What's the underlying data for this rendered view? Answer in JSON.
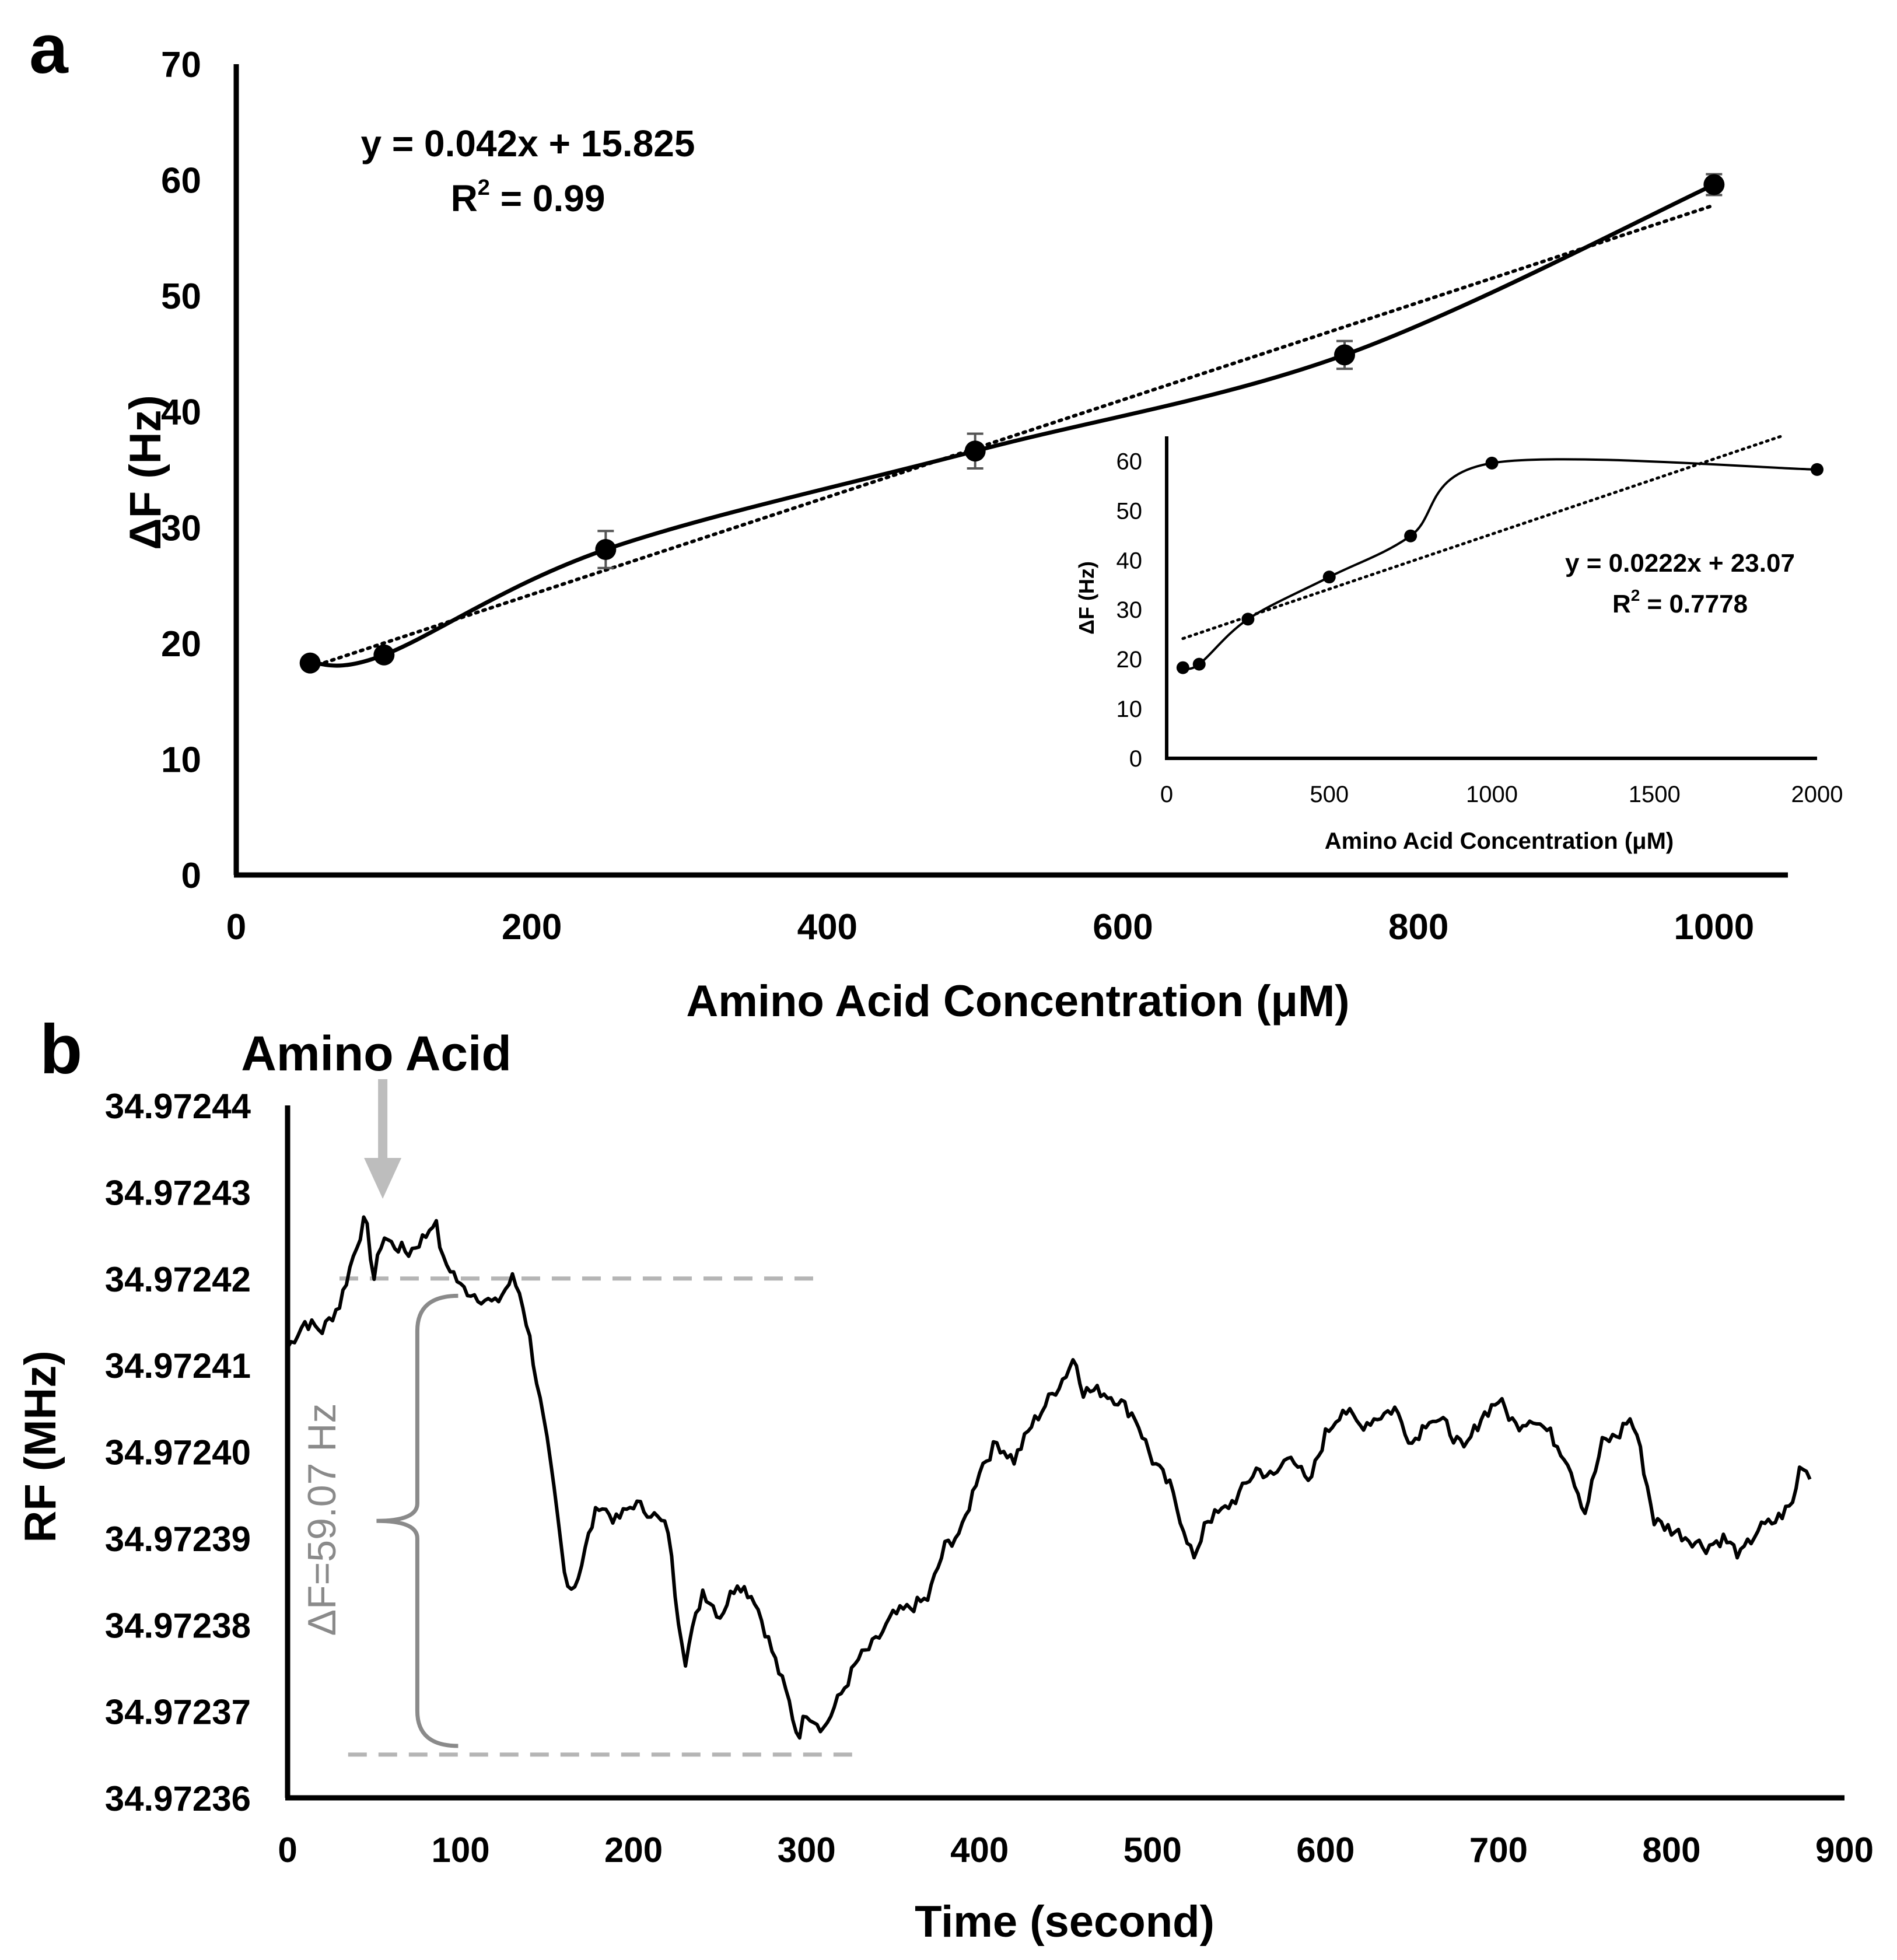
{
  "panel_labels": {
    "a": "a",
    "b": "b"
  },
  "colors": {
    "ink": "#000000",
    "annotation_gray": "#8a8a8a",
    "dashed_gray": "#b5b5b5",
    "arrow_gray": "#bdbdbd"
  },
  "chart_data": [
    {
      "id": "a-main",
      "type": "scatter",
      "title": "",
      "xlabel": "Amino Acid Concentration (μM)",
      "ylabel": "ΔF (Hz)",
      "xlim": [
        0,
        1050
      ],
      "ylim": [
        0,
        70
      ],
      "xticks": [
        0,
        200,
        400,
        600,
        800,
        1000
      ],
      "yticks": [
        0,
        10,
        20,
        30,
        40,
        50,
        60,
        70
      ],
      "series": [
        {
          "name": "ΔF",
          "x": [
            50,
            100,
            250,
            500,
            750,
            1000
          ],
          "y": [
            18.3,
            19.0,
            28.1,
            36.6,
            44.9,
            59.6
          ],
          "yerr": [
            0.5,
            0.4,
            1.6,
            1.5,
            1.2,
            0.9
          ]
        }
      ],
      "trendline": {
        "type": "linear",
        "slope": 0.042,
        "intercept": 15.825,
        "x_range": [
          50,
          1000
        ]
      },
      "equation": "y = 0.042x + 15.825",
      "r2_prefix": "R",
      "r2_exp": "2",
      "r2_value": " = 0.99"
    },
    {
      "id": "a-inset",
      "type": "scatter",
      "title": "",
      "xlabel": "Amino Acid Concentration (μM)",
      "ylabel": "ΔF (Hz)",
      "xlim": [
        0,
        2000
      ],
      "ylim": [
        0,
        65
      ],
      "xticks": [
        0,
        500,
        1000,
        1500,
        2000
      ],
      "yticks": [
        0,
        10,
        20,
        30,
        40,
        50,
        60
      ],
      "series": [
        {
          "name": "ΔF",
          "x": [
            50,
            100,
            250,
            500,
            750,
            1000,
            2000
          ],
          "y": [
            18.3,
            19.0,
            28.1,
            36.6,
            44.9,
            59.6,
            58.3
          ]
        }
      ],
      "trendline": {
        "type": "linear",
        "slope": 0.0222,
        "intercept": 23.07,
        "x_range": [
          50,
          1900
        ]
      },
      "equation": "y = 0.0222x + 23.07",
      "r2_prefix": "R",
      "r2_exp": "2",
      "r2_value": " = 0.7778"
    },
    {
      "id": "b",
      "type": "line",
      "title": "",
      "xlabel": "Time (second)",
      "ylabel": "RF (MHz)",
      "xlim": [
        0,
        900
      ],
      "ylim": [
        34.97236,
        34.97244
      ],
      "xticks": [
        0,
        100,
        200,
        300,
        400,
        500,
        600,
        700,
        800,
        900
      ],
      "yticks": [
        "34.97236",
        "34.97237",
        "34.97238",
        "34.97239",
        "34.97240",
        "34.97241",
        "34.97242",
        "34.97243",
        "34.97244"
      ],
      "series": [
        {
          "name": "RF",
          "x": [
            0,
            10,
            20,
            30,
            40,
            45,
            50,
            55,
            60,
            70,
            80,
            85,
            90,
            95,
            100,
            110,
            120,
            130,
            135,
            140,
            150,
            155,
            160,
            165,
            170,
            175,
            180,
            190,
            200,
            210,
            220,
            225,
            230,
            235,
            240,
            250,
            260,
            270,
            280,
            290,
            295,
            300,
            310,
            320,
            330,
            340,
            350,
            360,
            370,
            380,
            390,
            400,
            410,
            420,
            430,
            440,
            450,
            455,
            460,
            470,
            480,
            490,
            500,
            510,
            520,
            525,
            530,
            540,
            550,
            560,
            570,
            580,
            590,
            600,
            610,
            620,
            630,
            640,
            650,
            660,
            670,
            680,
            690,
            700,
            710,
            720,
            730,
            740,
            750,
            760,
            770,
            775,
            780,
            790,
            800,
            810,
            820,
            830,
            840,
            850,
            860,
            870,
            875,
            880
          ],
          "y": [
            34.972412,
            34.972415,
            34.972414,
            34.972417,
            34.972424,
            34.972427,
            34.97242,
            34.972425,
            34.972424,
            34.972423,
            34.972425,
            34.972427,
            34.972422,
            34.972421,
            34.972419,
            34.972418,
            34.972417,
            34.97242,
            34.972418,
            34.972413,
            34.972401,
            34.972394,
            34.972386,
            34.972384,
            34.972387,
            34.972391,
            34.972394,
            34.972392,
            34.972394,
            34.972393,
            34.972391,
            34.972382,
            34.972376,
            34.97238,
            34.972384,
            34.972381,
            34.972385,
            34.972383,
            34.972377,
            34.972371,
            34.972367,
            34.97237,
            34.972368,
            34.972372,
            34.972376,
            34.972378,
            34.972381,
            34.972382,
            34.972383,
            34.972389,
            34.972391,
            34.972398,
            34.972401,
            34.972399,
            34.972403,
            34.972406,
            34.972409,
            34.972411,
            34.972407,
            34.972407,
            34.972406,
            34.972404,
            34.972399,
            34.972396,
            34.97239,
            34.972387,
            34.972392,
            34.972393,
            34.972395,
            34.972398,
            34.972397,
            34.9724,
            34.972396,
            34.972402,
            34.972405,
            34.972403,
            34.972404,
            34.972405,
            34.972401,
            34.972404,
            34.972403,
            34.9724,
            34.972404,
            34.972406,
            34.972403,
            34.972404,
            34.972402,
            34.972399,
            34.972393,
            34.972401,
            34.972402,
            34.972404,
            34.972402,
            34.972392,
            34.972391,
            34.97239,
            34.972389,
            34.97239,
            34.972388,
            34.972391,
            34.972392,
            34.972394,
            34.972399,
            34.972397
          ]
        }
      ],
      "annotations": {
        "arrow_label": "Amino Acid",
        "arrow_x": 55,
        "delta_label": "ΔF=59.07 Hz",
        "upper_ref": 34.97242,
        "upper_ref_x": [
          30,
          310
        ],
        "lower_ref": 34.972365,
        "lower_ref_x": [
          35,
          330
        ],
        "brace_x": 75
      }
    }
  ]
}
